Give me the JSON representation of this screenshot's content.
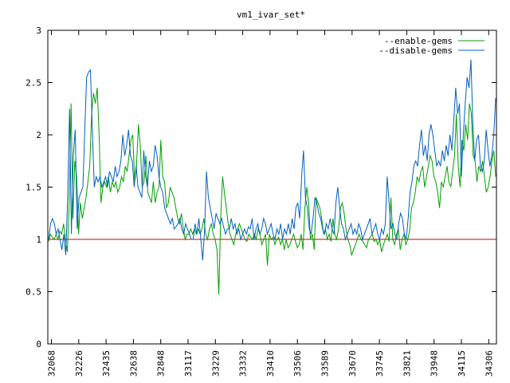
{
  "chart_data": {
    "type": "line",
    "title": "vm1_ivar_set*",
    "xlabel": "",
    "ylabel": "",
    "ylim": [
      0,
      3
    ],
    "yticks": [
      "0",
      "0.5",
      "1",
      "1.5",
      "2",
      "2.5",
      "3"
    ],
    "xticks": [
      "32068",
      "32226",
      "32435",
      "32638",
      "32848",
      "33117",
      "33229",
      "33332",
      "33410",
      "33506",
      "33589",
      "33670",
      "33745",
      "33821",
      "33948",
      "34115",
      "34306"
    ],
    "grid": false,
    "legend_position": "top-right",
    "baseline": {
      "value": 1,
      "color": "#cc0000"
    },
    "series": [
      {
        "name": "--enable-gems",
        "color": "#00a000",
        "values": [
          0.98,
          1.05,
          1.02,
          1.0,
          1.05,
          1.0,
          1.08,
          1.05,
          1.15,
          1.0,
          0.88,
          1.35,
          2.3,
          1.2,
          1.75,
          1.6,
          1.05,
          1.35,
          1.2,
          1.3,
          1.4,
          1.55,
          1.7,
          2.2,
          2.4,
          2.3,
          2.45,
          2.0,
          1.35,
          1.5,
          1.55,
          1.5,
          1.6,
          1.45,
          1.55,
          1.5,
          1.55,
          1.45,
          1.5,
          1.6,
          1.55,
          1.7,
          1.65,
          1.8,
          1.95,
          2.0,
          1.55,
          1.7,
          2.1,
          1.9,
          1.5,
          1.55,
          1.8,
          1.45,
          1.4,
          1.35,
          1.55,
          1.35,
          1.45,
          1.5,
          1.95,
          1.6,
          1.55,
          1.3,
          1.35,
          1.5,
          1.45,
          1.4,
          1.3,
          1.2,
          1.15,
          1.25,
          1.1,
          1.0,
          1.05,
          1.05,
          1.1,
          1.05,
          1.1,
          1.05,
          1.1,
          1.05,
          1.1,
          1.2,
          1.05,
          1.0,
          1.1,
          1.15,
          1.05,
          1.0,
          0.9,
          0.47,
          1.2,
          1.6,
          1.45,
          1.3,
          1.15,
          1.05,
          1.0,
          0.95,
          1.05,
          1.1,
          1.15,
          1.1,
          1.05,
          1.0,
          0.98,
          1.05,
          1.02,
          1.0,
          1.05,
          1.0,
          1.1,
          1.05,
          0.95,
          1.0,
          1.05,
          0.75,
          1.05,
          1.0,
          1.02,
          0.95,
          1.0,
          1.02,
          0.95,
          1.0,
          0.9,
          1.0,
          0.92,
          0.95,
          1.0,
          1.05,
          0.98,
          0.92,
          0.95,
          1.05,
          0.9,
          1.3,
          1.5,
          1.35,
          1.0,
          1.05,
          0.9,
          1.4,
          1.35,
          1.3,
          1.2,
          1.05,
          1.1,
          1.0,
          1.05,
          0.98,
          1.2,
          1.05,
          1.0,
          1.1,
          1.3,
          1.35,
          1.25,
          1.1,
          1.0,
          0.95,
          0.85,
          0.9,
          0.95,
          1.0,
          1.05,
          1.0,
          0.98,
          0.95,
          0.92,
          1.0,
          1.02,
          1.05,
          0.98,
          1.0,
          0.95,
          1.0,
          0.88,
          0.95,
          1.0,
          1.05,
          0.98,
          1.4,
          1.0,
          0.95,
          1.05,
          1.1,
          0.9,
          1.0,
          1.05,
          0.95,
          1.0,
          1.08,
          1.3,
          1.35,
          1.45,
          1.6,
          1.55,
          1.65,
          1.7,
          1.5,
          1.6,
          1.7,
          1.8,
          1.75,
          1.6,
          1.55,
          1.45,
          1.3,
          1.55,
          1.5,
          1.6,
          1.7,
          1.55,
          1.5,
          1.65,
          1.8,
          2.2,
          1.7,
          1.5,
          1.95,
          1.85,
          2.1,
          1.95,
          2.3,
          2.2,
          1.8,
          1.75,
          1.55,
          1.7,
          1.65,
          1.75,
          1.6,
          1.45,
          1.5,
          1.6,
          1.75,
          1.85,
          1.6
        ]
      },
      {
        "name": "--disable-gems",
        "color": "#0060c0",
        "values": [
          1.0,
          1.15,
          1.2,
          1.15,
          1.05,
          1.1,
          1.0,
          0.9,
          1.05,
          0.85,
          1.4,
          2.25,
          1.05,
          1.8,
          2.05,
          1.1,
          1.4,
          1.45,
          1.5,
          2.05,
          2.55,
          2.6,
          2.62,
          2.05,
          1.5,
          1.6,
          1.55,
          1.6,
          1.5,
          1.55,
          1.6,
          1.5,
          1.65,
          1.6,
          1.55,
          1.7,
          1.6,
          1.65,
          1.75,
          2.0,
          1.8,
          1.9,
          2.05,
          1.8,
          1.75,
          1.5,
          1.7,
          1.5,
          1.45,
          1.4,
          1.85,
          1.6,
          1.5,
          1.75,
          1.65,
          1.7,
          1.9,
          1.8,
          1.6,
          1.5,
          1.45,
          1.3,
          1.25,
          1.2,
          1.15,
          1.2,
          1.1,
          1.12,
          1.15,
          1.2,
          1.1,
          1.05,
          1.15,
          1.1,
          1.05,
          1.0,
          1.0,
          1.15,
          1.05,
          1.2,
          1.0,
          0.8,
          1.1,
          1.65,
          1.4,
          1.3,
          1.2,
          1.1,
          1.25,
          1.2,
          1.15,
          1.2,
          1.12,
          1.05,
          1.1,
          1.1,
          1.2,
          1.1,
          1.15,
          1.05,
          1.1,
          1.0,
          1.05,
          1.1,
          1.05,
          1.12,
          1.1,
          1.2,
          1.0,
          1.1,
          1.15,
          1.05,
          1.1,
          1.2,
          1.15,
          1.05,
          1.1,
          1.15,
          1.05,
          1.0,
          1.1,
          1.05,
          1.15,
          1.0,
          1.1,
          1.05,
          1.15,
          1.05,
          1.2,
          1.1,
          1.3,
          1.35,
          1.2,
          1.6,
          1.85,
          1.4,
          1.3,
          1.1,
          1.05,
          1.2,
          1.4,
          1.35,
          1.25,
          1.2,
          1.1,
          1.05,
          1.15,
          1.1,
          1.2,
          1.1,
          1.05,
          1.35,
          1.5,
          1.3,
          1.15,
          1.1,
          1.0,
          1.05,
          1.1,
          1.15,
          1.05,
          1.1,
          1.05,
          1.15,
          1.1,
          1.0,
          1.05,
          1.1,
          1.15,
          1.2,
          1.05,
          1.1,
          1.15,
          1.05,
          1.0,
          1.1,
          1.05,
          1.15,
          1.6,
          1.35,
          1.1,
          1.15,
          1.05,
          1.0,
          1.15,
          1.25,
          1.2,
          1.05,
          1.0,
          1.2,
          1.45,
          1.55,
          1.7,
          1.75,
          1.7,
          1.9,
          2.05,
          1.8,
          1.9,
          1.75,
          2.0,
          2.1,
          2.0,
          1.85,
          1.7,
          1.75,
          1.7,
          1.85,
          1.75,
          1.9,
          1.8,
          2.0,
          1.85,
          2.15,
          2.45,
          2.2,
          2.3,
          1.6,
          2.0,
          2.3,
          2.55,
          2.45,
          2.72,
          2.1,
          1.75,
          1.95,
          2.0,
          1.7,
          1.65,
          1.75,
          2.05,
          1.85,
          1.7,
          1.8,
          2.0,
          2.35
        ]
      }
    ]
  }
}
